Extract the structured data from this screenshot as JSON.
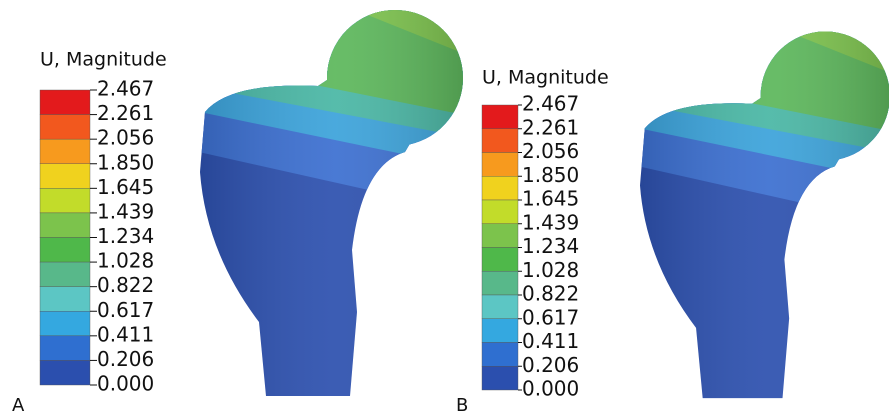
{
  "panels": [
    {
      "label": "A",
      "legend": {
        "title": "U, Magnitude",
        "values": [
          "2.467",
          "2.261",
          "2.056",
          "1.850",
          "1.645",
          "1.439",
          "1.234",
          "1.028",
          "0.822",
          "0.617",
          "0.411",
          "0.206",
          "0.000"
        ]
      }
    },
    {
      "label": "B",
      "legend": {
        "title": "U, Magnitude",
        "values": [
          "2.467",
          "2.261",
          "2.056",
          "1.850",
          "1.645",
          "1.439",
          "1.234",
          "1.028",
          "0.822",
          "0.617",
          "0.411",
          "0.206",
          "0.000"
        ]
      }
    }
  ]
}
